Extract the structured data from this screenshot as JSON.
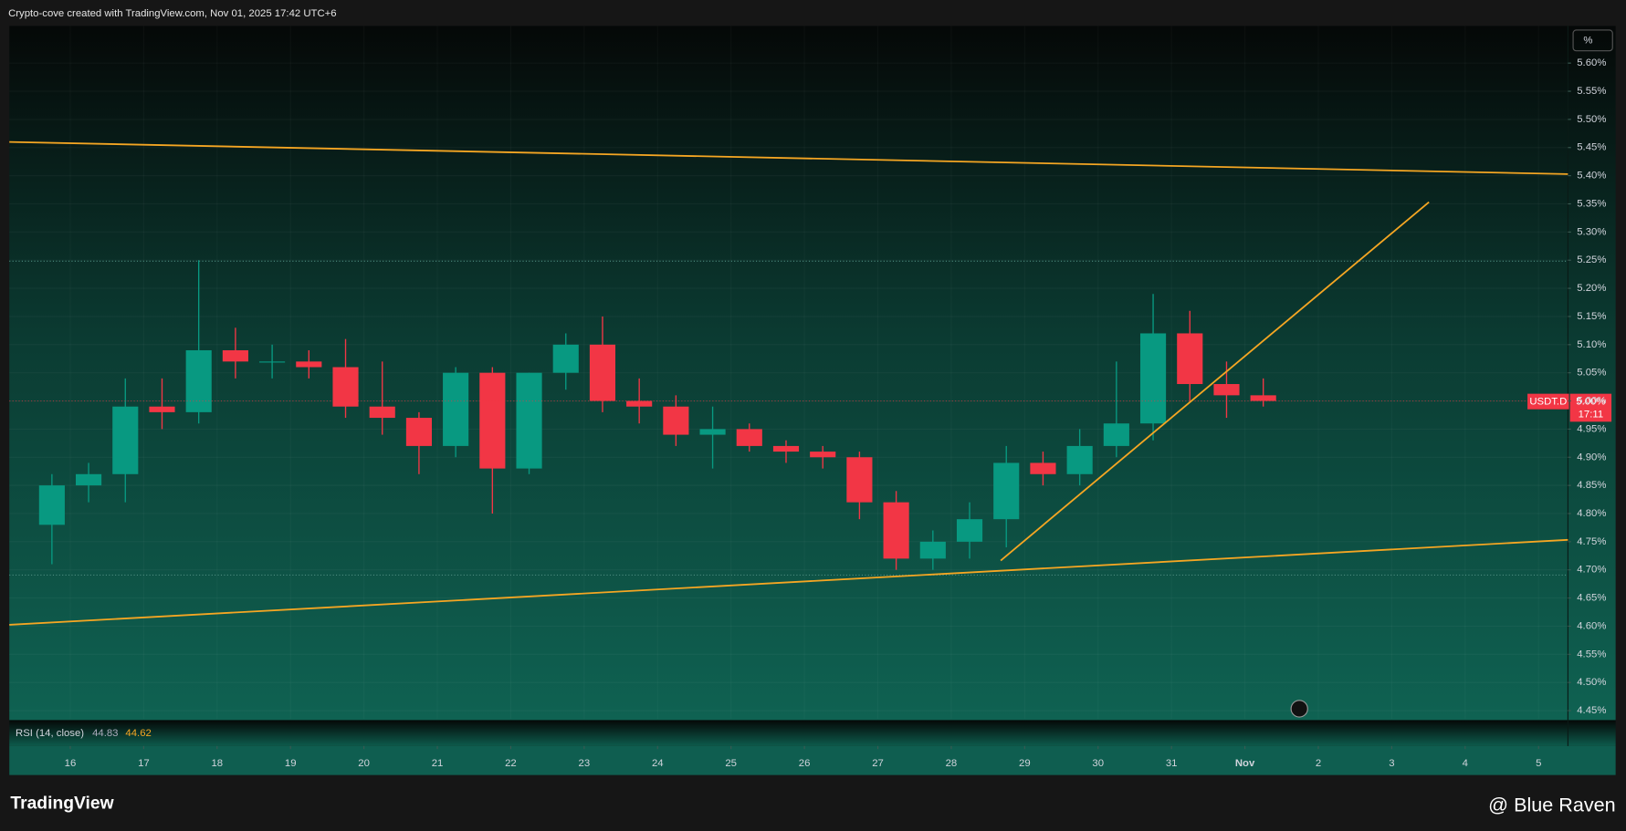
{
  "header": "Crypto-cove created with TradingView.com, Nov 01, 2025 17:42 UTC+6",
  "scale_button": "%",
  "price_label": {
    "symbol": "USDT.D",
    "value": "5.00%",
    "countdown": "17:11"
  },
  "indicator": {
    "name": "RSI (14, close)",
    "values": [
      "44.83",
      "44.62"
    ]
  },
  "footer": {
    "logo": "TradingView",
    "watermark": "@ Blue Raven"
  },
  "chart_data": {
    "type": "candlestick",
    "up_color": "#089981",
    "down_color": "#f23645",
    "x": [
      15.75,
      16.25,
      16.75,
      17.25,
      17.75,
      18.25,
      18.75,
      19.25,
      19.75,
      20.25,
      20.75,
      21.25,
      21.75,
      22.25,
      22.75,
      23.25,
      23.75,
      24.25,
      24.75,
      25.25,
      25.75,
      26.25,
      26.75,
      27.25,
      27.75,
      28.25,
      28.75,
      29.25,
      29.75,
      30.25,
      30.75,
      31.25,
      31.75,
      32.25
    ],
    "open": [
      4.78,
      4.85,
      4.87,
      4.99,
      4.98,
      5.09,
      5.07,
      5.07,
      5.06,
      4.99,
      4.97,
      4.92,
      5.05,
      4.88,
      5.05,
      5.1,
      5.0,
      4.99,
      4.94,
      4.95,
      4.92,
      4.91,
      4.9,
      4.82,
      4.72,
      4.75,
      4.79,
      4.89,
      4.87,
      4.92,
      4.96,
      5.12,
      5.03,
      5.01
    ],
    "high": [
      4.87,
      4.89,
      5.04,
      5.04,
      5.25,
      5.13,
      5.1,
      5.09,
      5.11,
      5.07,
      4.98,
      5.06,
      5.06,
      5.05,
      5.12,
      5.15,
      5.04,
      5.01,
      4.99,
      4.96,
      4.93,
      4.92,
      4.91,
      4.84,
      4.77,
      4.82,
      4.92,
      4.91,
      4.95,
      5.07,
      5.19,
      5.16,
      5.07,
      5.04
    ],
    "low": [
      4.71,
      4.82,
      4.82,
      4.95,
      4.96,
      5.04,
      5.04,
      5.04,
      4.97,
      4.94,
      4.87,
      4.9,
      4.8,
      4.87,
      5.02,
      4.98,
      4.96,
      4.92,
      4.88,
      4.91,
      4.89,
      4.88,
      4.79,
      4.7,
      4.7,
      4.72,
      4.74,
      4.85,
      4.85,
      4.9,
      4.93,
      5.0,
      4.97,
      4.99
    ],
    "close": [
      4.85,
      4.87,
      4.99,
      4.98,
      5.09,
      5.07,
      5.07,
      5.06,
      4.99,
      4.97,
      4.92,
      5.05,
      4.88,
      5.05,
      5.1,
      5.0,
      4.99,
      4.94,
      4.95,
      4.92,
      4.91,
      4.9,
      4.82,
      4.72,
      4.75,
      4.79,
      4.89,
      4.87,
      4.92,
      4.96,
      5.12,
      5.03,
      5.01,
      5.0
    ],
    "xlim": [
      15.17,
      36.4
    ],
    "xticks": [
      16,
      17,
      18,
      19,
      20,
      21,
      22,
      23,
      24,
      25,
      26,
      27,
      28,
      29,
      30,
      31,
      {
        "value": 32,
        "label": "Nov"
      },
      {
        "value": 33,
        "label": "2"
      },
      {
        "value": 34,
        "label": "3"
      },
      {
        "value": 35,
        "label": "4"
      },
      {
        "value": 36,
        "label": "5"
      }
    ],
    "ylim": [
      4.435,
      5.666
    ],
    "yticks": [
      {
        "value": 4.45,
        "label": "4.45%"
      },
      {
        "value": 4.5,
        "label": "4.50%"
      },
      {
        "value": 4.55,
        "label": "4.55%"
      },
      {
        "value": 4.6,
        "label": "4.60%"
      },
      {
        "value": 4.65,
        "label": "4.65%"
      },
      {
        "value": 4.7,
        "label": "4.70%"
      },
      {
        "value": 4.75,
        "label": "4.75%"
      },
      {
        "value": 4.8,
        "label": "4.80%"
      },
      {
        "value": 4.85,
        "label": "4.85%"
      },
      {
        "value": 4.9,
        "label": "4.90%"
      },
      {
        "value": 4.95,
        "label": "4.95%"
      },
      {
        "value": 5.0,
        "label": "5.00%"
      },
      {
        "value": 5.05,
        "label": "5.05%"
      },
      {
        "value": 5.1,
        "label": "5.10%"
      },
      {
        "value": 5.15,
        "label": "5.15%"
      },
      {
        "value": 5.2,
        "label": "5.20%"
      },
      {
        "value": 5.25,
        "label": "5.25%"
      },
      {
        "value": 5.3,
        "label": "5.30%"
      },
      {
        "value": 5.35,
        "label": "5.35%"
      },
      {
        "value": 5.4,
        "label": "5.40%"
      },
      {
        "value": 5.45,
        "label": "5.45%"
      },
      {
        "value": 5.5,
        "label": "5.50%"
      },
      {
        "value": 5.55,
        "label": "5.55%"
      },
      {
        "value": 5.6,
        "label": "5.60%"
      }
    ],
    "grid": true
  }
}
